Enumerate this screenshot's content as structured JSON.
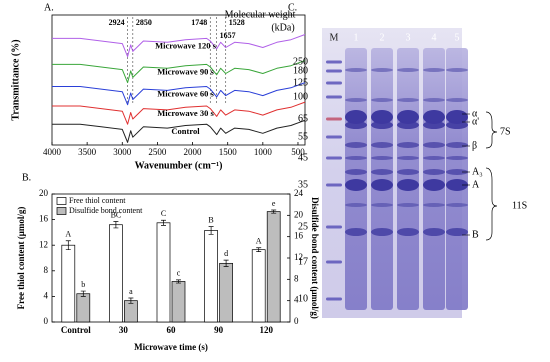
{
  "panel_labels": [
    "A.",
    "B.",
    "C."
  ],
  "chart_data": [
    {
      "type": "line",
      "xlabel": "Wavenumber (cm⁻¹)",
      "ylabel": "Transmittance (%)",
      "xlim": [
        4000,
        400
      ],
      "xticks": [
        4000,
        3500,
        3000,
        2500,
        2000,
        1500,
        1000,
        500
      ],
      "ylim": [
        0,
        100
      ],
      "marker_lines": [
        2924,
        2850,
        1748,
        1657,
        1528
      ],
      "x": [
        4000,
        3600,
        3300,
        3000,
        2924,
        2880,
        2850,
        2700,
        2360,
        2100,
        1800,
        1748,
        1657,
        1600,
        1528,
        1400,
        1200,
        1000,
        800,
        600,
        400
      ],
      "series": [
        {
          "name": "Microwave 120 s",
          "color": "#b060e8",
          "values": [
            82,
            82,
            80,
            78,
            68,
            77,
            72,
            80,
            79,
            81,
            82,
            80,
            74,
            79,
            75,
            79,
            78,
            75,
            79,
            81,
            85
          ]
        },
        {
          "name": "Microwave 90 s",
          "color": "#3aa63a",
          "values": [
            62,
            62,
            60,
            58,
            48,
            57,
            52,
            60,
            59,
            61,
            62,
            60,
            54,
            59,
            55,
            59,
            58,
            55,
            59,
            61,
            65
          ]
        },
        {
          "name": "Microwave 60 s",
          "color": "#2a3fd8",
          "values": [
            45,
            45,
            43,
            41,
            31,
            40,
            35,
            43,
            42,
            44,
            45,
            43,
            37,
            42,
            38,
            42,
            41,
            38,
            42,
            44,
            48
          ]
        },
        {
          "name": "Microwave 30 s",
          "color": "#e03030",
          "values": [
            30,
            30,
            28,
            26,
            16,
            25,
            20,
            28,
            27,
            29,
            30,
            28,
            22,
            27,
            23,
            27,
            26,
            23,
            27,
            29,
            33
          ]
        },
        {
          "name": "Control",
          "color": "#222222",
          "values": [
            16,
            16,
            14,
            12,
            2,
            11,
            6,
            14,
            13,
            15,
            16,
            14,
            8,
            13,
            9,
            13,
            12,
            9,
            13,
            15,
            19
          ]
        }
      ]
    },
    {
      "type": "bar",
      "xlabel": "Microwave time (s)",
      "ylabel": "Free thiol content (μmol/g)",
      "y2label": "Disulfide bond content (μmol/g)",
      "categories": [
        "Control",
        "30",
        "60",
        "90",
        "120"
      ],
      "ylim": [
        0,
        20
      ],
      "yticks": [
        0,
        4,
        8,
        12,
        16,
        20
      ],
      "y2lim": [
        0,
        24
      ],
      "y2ticks": [
        0,
        4,
        8,
        12,
        16,
        20,
        24
      ],
      "series": [
        {
          "name": "Free thiol content",
          "color": "#ffffff",
          "values": [
            12.0,
            15.2,
            15.5,
            14.3,
            11.3
          ],
          "errors": [
            0.7,
            0.5,
            0.4,
            0.6,
            0.3
          ],
          "annotations": [
            "A",
            "BC",
            "C",
            "B",
            "A"
          ]
        },
        {
          "name": "Disulfide bond content",
          "color": "#bdbdbd",
          "axis": "y2",
          "values": [
            5.3,
            4.0,
            7.6,
            11.0,
            20.7
          ],
          "errors": [
            0.5,
            0.5,
            0.3,
            0.6,
            0.3
          ],
          "annotations": [
            "b",
            "a",
            "c",
            "d",
            "e"
          ]
        }
      ]
    }
  ],
  "gel": {
    "title": "Molecular weight",
    "unit": "(kDa)",
    "lanes": [
      "M",
      "1",
      "2",
      "3",
      "4",
      "5"
    ],
    "markers": [
      "250",
      "180",
      "125",
      "100",
      "65",
      "55",
      "45",
      "35",
      "25",
      "17",
      "10"
    ],
    "bands": [
      "α",
      "α'",
      "β",
      "A₃",
      "A",
      "B"
    ],
    "groups": [
      "7S",
      "11S"
    ]
  }
}
